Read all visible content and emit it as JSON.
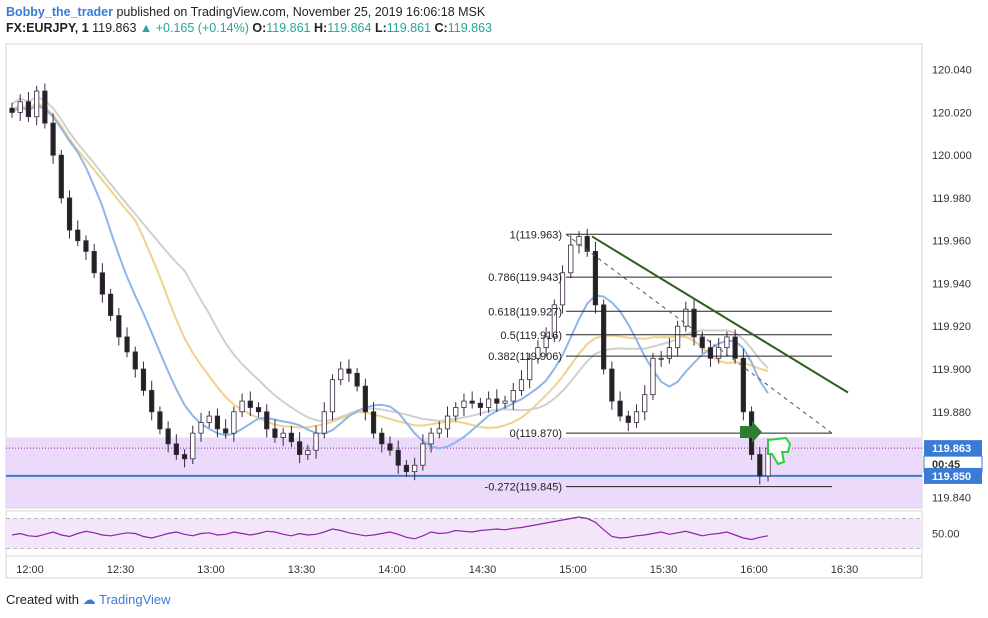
{
  "header": {
    "author": "Bobby_the_trader",
    "published": "published on TradingView.com, November 25, 2019 16:06:18 MSK",
    "symbol": "FX:EURJPY, 1",
    "last": "119.863",
    "change": "▲ +0.165 (+0.14%)",
    "o_label": "O:",
    "o": "119.861",
    "h_label": "H:",
    "h": "119.864",
    "l_label": "L:",
    "l": "119.861",
    "c_label": "C:",
    "c": "119.863"
  },
  "footer": {
    "created_with": "Created with",
    "brand": "TradingView"
  },
  "colors": {
    "up": "#ffffff",
    "down": "#222222",
    "wick": "#3a2a40",
    "ma_blue": "#8fb6e8",
    "ma_yellow": "#f0d28a",
    "ma_gray": "#d0d0d0",
    "trend": "#2e5e1e",
    "zone": "#e8d3f8",
    "level_line": "#3a7bd5",
    "rsi": "#8e24aa",
    "price_tag": "#3a7bd5",
    "arrow": "#2e7d32"
  },
  "chart_data": [
    {
      "type": "line",
      "title": "",
      "x_ticks": [
        "12:00",
        "12:30",
        "13:00",
        "13:30",
        "14:00",
        "14:30",
        "15:00",
        "15:30",
        "16:00",
        "16:30"
      ],
      "y_ticks": [
        "120.040",
        "120.020",
        "120.000",
        "119.980",
        "119.960",
        "119.940",
        "119.920",
        "119.900",
        "119.880",
        "119.850",
        "119.840"
      ],
      "ylim": [
        119.835,
        120.052
      ],
      "series": [
        {
          "values": [
            120.02,
            120.025,
            120.018,
            120.03,
            120.015,
            120.0,
            119.98,
            119.965,
            119.96,
            119.955,
            119.945,
            119.935,
            119.925,
            119.915,
            119.908,
            119.9,
            119.89,
            119.88,
            119.872,
            119.865,
            119.86,
            119.858,
            119.87,
            119.875,
            119.878,
            119.872,
            119.87,
            119.88,
            119.885,
            119.882,
            119.88,
            119.872,
            119.868,
            119.87,
            119.866,
            119.86,
            119.862,
            119.87,
            119.88,
            119.895,
            119.9,
            119.898,
            119.892,
            119.88,
            119.87,
            119.865,
            119.862,
            119.855,
            119.852,
            119.855,
            119.865,
            119.87,
            119.872,
            119.878,
            119.882,
            119.885,
            119.884,
            119.882,
            119.886,
            119.884,
            119.885,
            119.89,
            119.895,
            119.905,
            119.91,
            119.915,
            119.93,
            119.945,
            119.958,
            119.962,
            119.955,
            119.93,
            119.9,
            119.885,
            119.878,
            119.875,
            119.88,
            119.888,
            119.905,
            119.905,
            119.91,
            119.92,
            119.928,
            119.915,
            119.91,
            119.905,
            119.91,
            119.915,
            119.905,
            119.88,
            119.86,
            119.85,
            119.863
          ]
        }
      ],
      "levels": {
        "fib": [
          {
            "label": "1(119.963)",
            "value": 119.963
          },
          {
            "label": "0.786(119.943)",
            "value": 119.943
          },
          {
            "label": "0.618(119.927)",
            "value": 119.927
          },
          {
            "label": "0.5(119.916)",
            "value": 119.916
          },
          {
            "label": "0.382(119.906)",
            "value": 119.906
          },
          {
            "label": "0(119.870)",
            "value": 119.87
          },
          {
            "label": "-0.272(119.845)",
            "value": 119.845
          }
        ],
        "support": 119.85,
        "current": 119.863,
        "current_label": "119.863",
        "countdown": "00:45",
        "support_label": "119.850",
        "zone": [
          119.835,
          119.868
        ]
      }
    },
    {
      "type": "line",
      "title": "",
      "y_ticks": [
        "50.00"
      ],
      "ylim": [
        20,
        80
      ],
      "values": [
        48,
        50,
        47,
        46,
        49,
        52,
        48,
        46,
        50,
        53,
        51,
        48,
        47,
        49,
        51,
        50,
        46,
        44,
        47,
        50,
        52,
        49,
        47,
        50,
        51,
        48,
        49,
        52,
        50,
        48,
        50,
        53,
        52,
        49,
        47,
        50,
        48,
        49,
        52,
        56,
        54,
        51,
        49,
        47,
        48,
        50,
        52,
        49,
        45,
        43,
        47,
        52,
        50,
        51,
        54,
        53,
        52,
        54,
        55,
        56,
        55,
        57,
        58,
        60,
        62,
        64,
        66,
        68,
        70,
        72,
        70,
        65,
        55,
        46,
        44,
        45,
        47,
        48,
        50,
        52,
        49,
        51,
        53,
        50,
        47,
        49,
        50,
        52,
        48,
        44,
        42,
        45,
        47
      ]
    }
  ]
}
